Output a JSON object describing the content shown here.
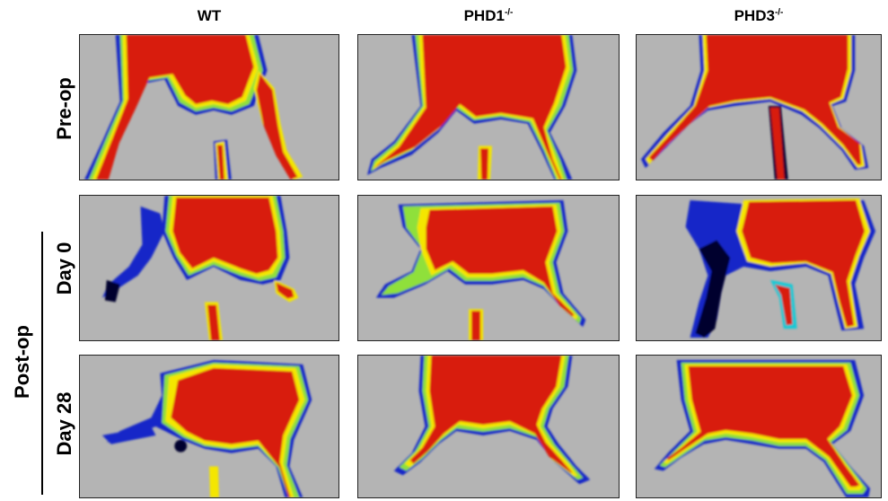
{
  "columns": [
    {
      "base": "WT",
      "sup": ""
    },
    {
      "base": "PHD1",
      "sup": "-/-"
    },
    {
      "base": "PHD3",
      "sup": "-/-"
    }
  ],
  "rows": {
    "preop": "Pre-op",
    "postop": "Post-op",
    "day0": "Day 0",
    "day28": "Day 28"
  },
  "heatmap_colors": {
    "background": "#b4b4b4",
    "high": "#d81a10",
    "mid_high": "#f4e600",
    "mid": "#8fe03a",
    "mid_low": "#19c9d6",
    "low": "#1528c8",
    "lowest": "#05062e"
  }
}
